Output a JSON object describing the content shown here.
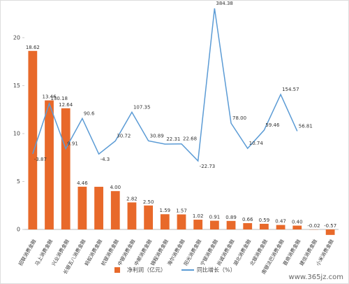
{
  "chart_data": {
    "type": "bar",
    "categories": [
      "招联消费金融",
      "马上消费金融",
      "兴业消费金融",
      "长银五八消费金融",
      "蚂蚁消费金融",
      "杭银消费金融",
      "中银消费金融",
      "中邮消费金融",
      "锦程消费金融",
      "海尔消费金融",
      "阳光消费金融",
      "宁银消费金融",
      "尚诚消费金融",
      "湖北消费金融",
      "北银消费金融",
      "南银法巴消费金融",
      "晋商消费金融",
      "建信消费金融",
      "小米消费金融"
    ],
    "series": [
      {
        "name": "净利润（亿元）",
        "type": "bar",
        "color": "#e8692a",
        "values": [
          18.62,
          13.46,
          12.64,
          4.46,
          4.45,
          4.0,
          2.82,
          2.5,
          1.59,
          1.57,
          1.02,
          0.91,
          0.89,
          0.66,
          0.59,
          0.47,
          0.4,
          -0.02,
          -0.57
        ],
        "value_labels": [
          "18.62",
          "13.46",
          "12.64",
          "4.46",
          null,
          "4.00",
          "2.82",
          "2.50",
          "1.59",
          "1.57",
          "1.02",
          "0.91",
          "0.89",
          "0.66",
          "0.59",
          "0.47",
          "0.40",
          "-0.02",
          "-0.57"
        ]
      },
      {
        "name": "同比增长（%）",
        "type": "line",
        "axis": "y2",
        "color": "#5b9bd5",
        "values": [
          -3.87,
          130.18,
          9.91,
          90.6,
          -4.3,
          30.72,
          107.35,
          30.89,
          22.31,
          22.68,
          -22.73,
          384.38,
          78.0,
          10.74,
          59.46,
          154.57,
          56.81,
          null,
          null
        ],
        "value_labels": [
          "-3.87",
          "130.18",
          "9.91",
          "90.6",
          "-4.3",
          "30.72",
          "107.35",
          "30.89",
          "22.31",
          "22.68",
          "-22.73",
          "384.38",
          "78.00",
          "10.74",
          "59.46",
          "154.57",
          "56.81",
          null,
          null
        ]
      }
    ],
    "ylim": [
      -0.8,
      23.2
    ],
    "yticks": [
      0,
      5,
      10,
      15,
      20
    ],
    "y2lim": [
      -226,
      388
    ],
    "legend": "bottom",
    "watermark": "www.365jz.com"
  }
}
